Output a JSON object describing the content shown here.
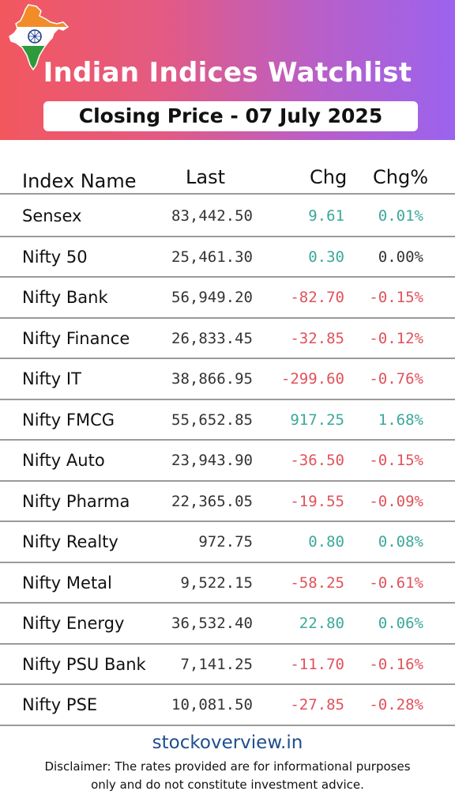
{
  "header": {
    "title": "Indian Indices Watchlist",
    "subtitle": "Closing Price - 07 July 2025",
    "icon": "india-map-flag-icon"
  },
  "table": {
    "columns": [
      "Index Name",
      "Last",
      "Chg",
      "Chg%"
    ],
    "rows": [
      {
        "name": "Sensex",
        "last": "83,442.50",
        "chg": "9.61",
        "pct": "0.01%",
        "dir": "pos"
      },
      {
        "name": "Nifty 50",
        "last": "25,461.30",
        "chg": "0.30",
        "pct": "0.00%",
        "dir": "mixed"
      },
      {
        "name": "Nifty Bank",
        "last": "56,949.20",
        "chg": "-82.70",
        "pct": "-0.15%",
        "dir": "neg"
      },
      {
        "name": "Nifty Finance",
        "last": "26,833.45",
        "chg": "-32.85",
        "pct": "-0.12%",
        "dir": "neg"
      },
      {
        "name": "Nifty IT",
        "last": "38,866.95",
        "chg": "-299.60",
        "pct": "-0.76%",
        "dir": "neg"
      },
      {
        "name": "Nifty FMCG",
        "last": "55,652.85",
        "chg": "917.25",
        "pct": "1.68%",
        "dir": "pos"
      },
      {
        "name": "Nifty Auto",
        "last": "23,943.90",
        "chg": "-36.50",
        "pct": "-0.15%",
        "dir": "neg"
      },
      {
        "name": "Nifty Pharma",
        "last": "22,365.05",
        "chg": "-19.55",
        "pct": "-0.09%",
        "dir": "neg"
      },
      {
        "name": "Nifty Realty",
        "last": "972.75",
        "chg": "0.80",
        "pct": "0.08%",
        "dir": "pos"
      },
      {
        "name": "Nifty Metal",
        "last": "9,522.15",
        "chg": "-58.25",
        "pct": "-0.61%",
        "dir": "neg"
      },
      {
        "name": "Nifty Energy",
        "last": "36,532.40",
        "chg": "22.80",
        "pct": "0.06%",
        "dir": "pos"
      },
      {
        "name": "Nifty PSU Bank",
        "last": "7,141.25",
        "chg": "-11.70",
        "pct": "-0.16%",
        "dir": "neg"
      },
      {
        "name": "Nifty PSE",
        "last": "10,081.50",
        "chg": "-27.85",
        "pct": "-0.28%",
        "dir": "neg"
      }
    ]
  },
  "footer": {
    "site": "stockoverview.in",
    "disclaimer": "Disclaimer: The rates provided are for informational purposes only and do not constitute investment advice."
  },
  "colors": {
    "positive": "#3aa89a",
    "negative": "#e0525a",
    "neutral": "#333333",
    "gradient_start": "#f2575e",
    "gradient_end": "#9b63ee",
    "link": "#1f4e8c"
  }
}
